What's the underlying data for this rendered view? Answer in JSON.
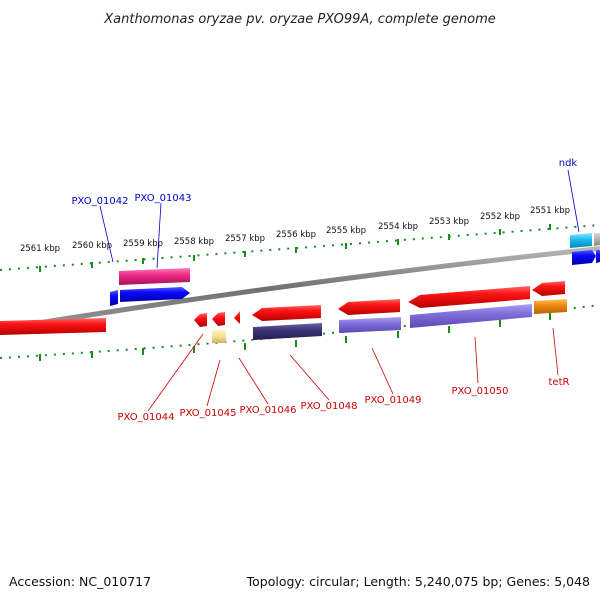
{
  "title": "Xanthomonas oryzae pv. oryzae PXO99A, complete genome",
  "footer": {
    "accession": "Accession: NC_010717",
    "summary": "Topology: circular; Length: 5,240,075 bp; Genes: 5,048"
  },
  "colors": {
    "backbone": "#8a8a8a",
    "tick": "#1a8a1a",
    "label_top": "#0000cc",
    "label_bottom": "#cc0000"
  },
  "scale_ticks": [
    {
      "label": "2561 kbp"
    },
    {
      "label": "2560 kbp"
    },
    {
      "label": "2559 kbp"
    },
    {
      "label": "2558 kbp"
    },
    {
      "label": "2557 kbp"
    },
    {
      "label": "2556 kbp"
    },
    {
      "label": "2555 kbp"
    },
    {
      "label": "2554 kbp"
    },
    {
      "label": "2553 kbp"
    },
    {
      "label": "2552 kbp"
    },
    {
      "label": "2551 kbp"
    }
  ],
  "labels_top": [
    {
      "text": "PXO_01042"
    },
    {
      "text": "PXO_01043"
    },
    {
      "text": "ndk"
    }
  ],
  "labels_bottom": [
    {
      "text": "PXO_01044"
    },
    {
      "text": "PXO_01045"
    },
    {
      "text": "PXO_01046"
    },
    {
      "text": "PXO_01048"
    },
    {
      "text": "PXO_01049"
    },
    {
      "text": "PXO_01050"
    },
    {
      "text": "tetR"
    }
  ]
}
